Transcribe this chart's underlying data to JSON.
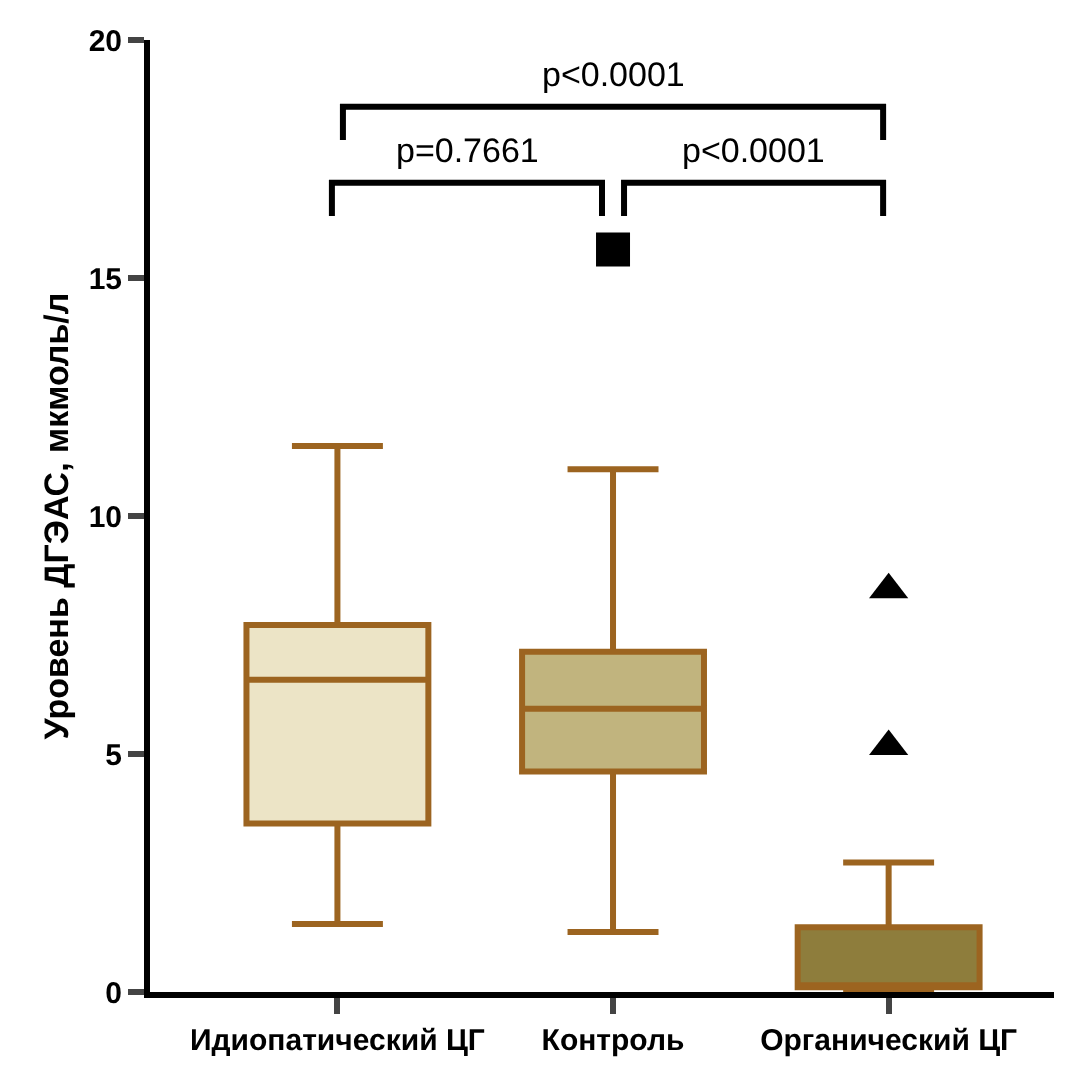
{
  "chart_data": {
    "type": "box",
    "ylabel": "Уровень ДГЭАС, мкмоль/л",
    "categories": [
      "Идиопатический ЦГ",
      "Контроль",
      "Органический ЦГ"
    ],
    "series": [
      {
        "color": "#ece4c6",
        "marker": "none",
        "boxes": [
          {
            "low": 1.43,
            "q1": 3.54,
            "median": 6.56,
            "q3": 7.71,
            "high": 11.47
          },
          null,
          null
        ]
      },
      {
        "color": "#c1b47e",
        "marker": "square",
        "boxes": [
          null,
          {
            "low": 1.26,
            "q1": 4.63,
            "median": 5.95,
            "q3": 7.15,
            "high": 10.98,
            "outliers": [
              15.6
            ]
          },
          null
        ]
      },
      {
        "color": "#8e7d3c",
        "marker": "triangle",
        "boxes": [
          null,
          null,
          {
            "low": 0.05,
            "q1": 0.1,
            "median": 0.1,
            "q3": 1.36,
            "high": 2.72,
            "outliers": [
              8.45,
              5.16
            ]
          }
        ]
      }
    ],
    "ylim": [
      0,
      20
    ],
    "yticks": [
      0,
      5,
      10,
      15,
      20
    ],
    "annotations": [
      "p<0.0001",
      "p=0.7661",
      "p<0.0001"
    ]
  }
}
